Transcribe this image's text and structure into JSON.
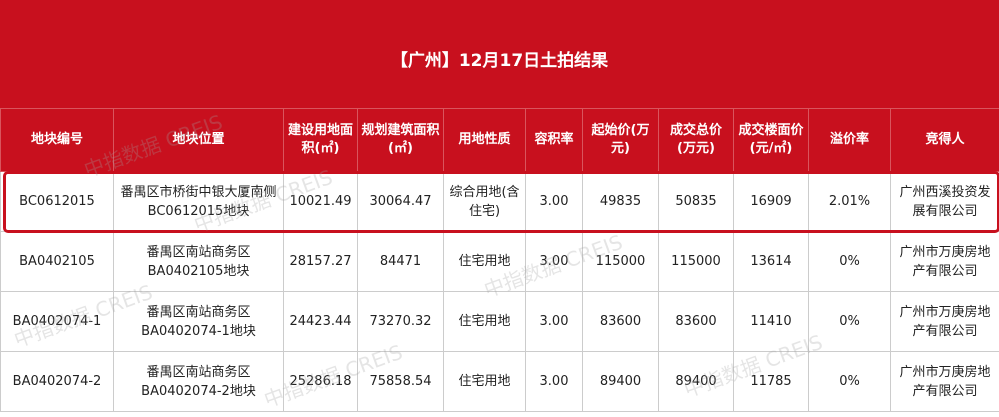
{
  "title": "【广州】12月17日土拍结果",
  "watermark": "中指数据 CREIS",
  "colors": {
    "header": "#c8101e",
    "highlight_border": "#c8101e"
  },
  "columns": [
    "地块编号",
    "地块位置",
    "建设用地面积(㎡)",
    "规划建筑面积(㎡)",
    "用地性质",
    "容积率",
    "起始价(万元)",
    "成交总价(万元)",
    "成交楼面价(元/㎡)",
    "溢价率",
    "竞得人"
  ],
  "rows": [
    [
      "BC0612015",
      "番禺区市桥街中银大厦南侧BC0612015地块",
      "10021.49",
      "30064.47",
      "综合用地(含住宅)",
      "3.00",
      "49835",
      "50835",
      "16909",
      "2.01%",
      "广州西溪投资发展有限公司"
    ],
    [
      "BA0402105",
      "番禺区南站商务区BA0402105地块",
      "28157.27",
      "84471",
      "住宅用地",
      "3.00",
      "115000",
      "115000",
      "13614",
      "0%",
      "广州市万庚房地产有限公司"
    ],
    [
      "BA0402074-1",
      "番禺区南站商务区BA0402074-1地块",
      "24423.44",
      "73270.32",
      "住宅用地",
      "3.00",
      "83600",
      "83600",
      "11410",
      "0%",
      "广州市万庚房地产有限公司"
    ],
    [
      "BA0402074-2",
      "番禺区南站商务区BA0402074-2地块",
      "25286.18",
      "75858.54",
      "住宅用地",
      "3.00",
      "89400",
      "89400",
      "11785",
      "0%",
      "广州市万庚房地产有限公司"
    ]
  ]
}
